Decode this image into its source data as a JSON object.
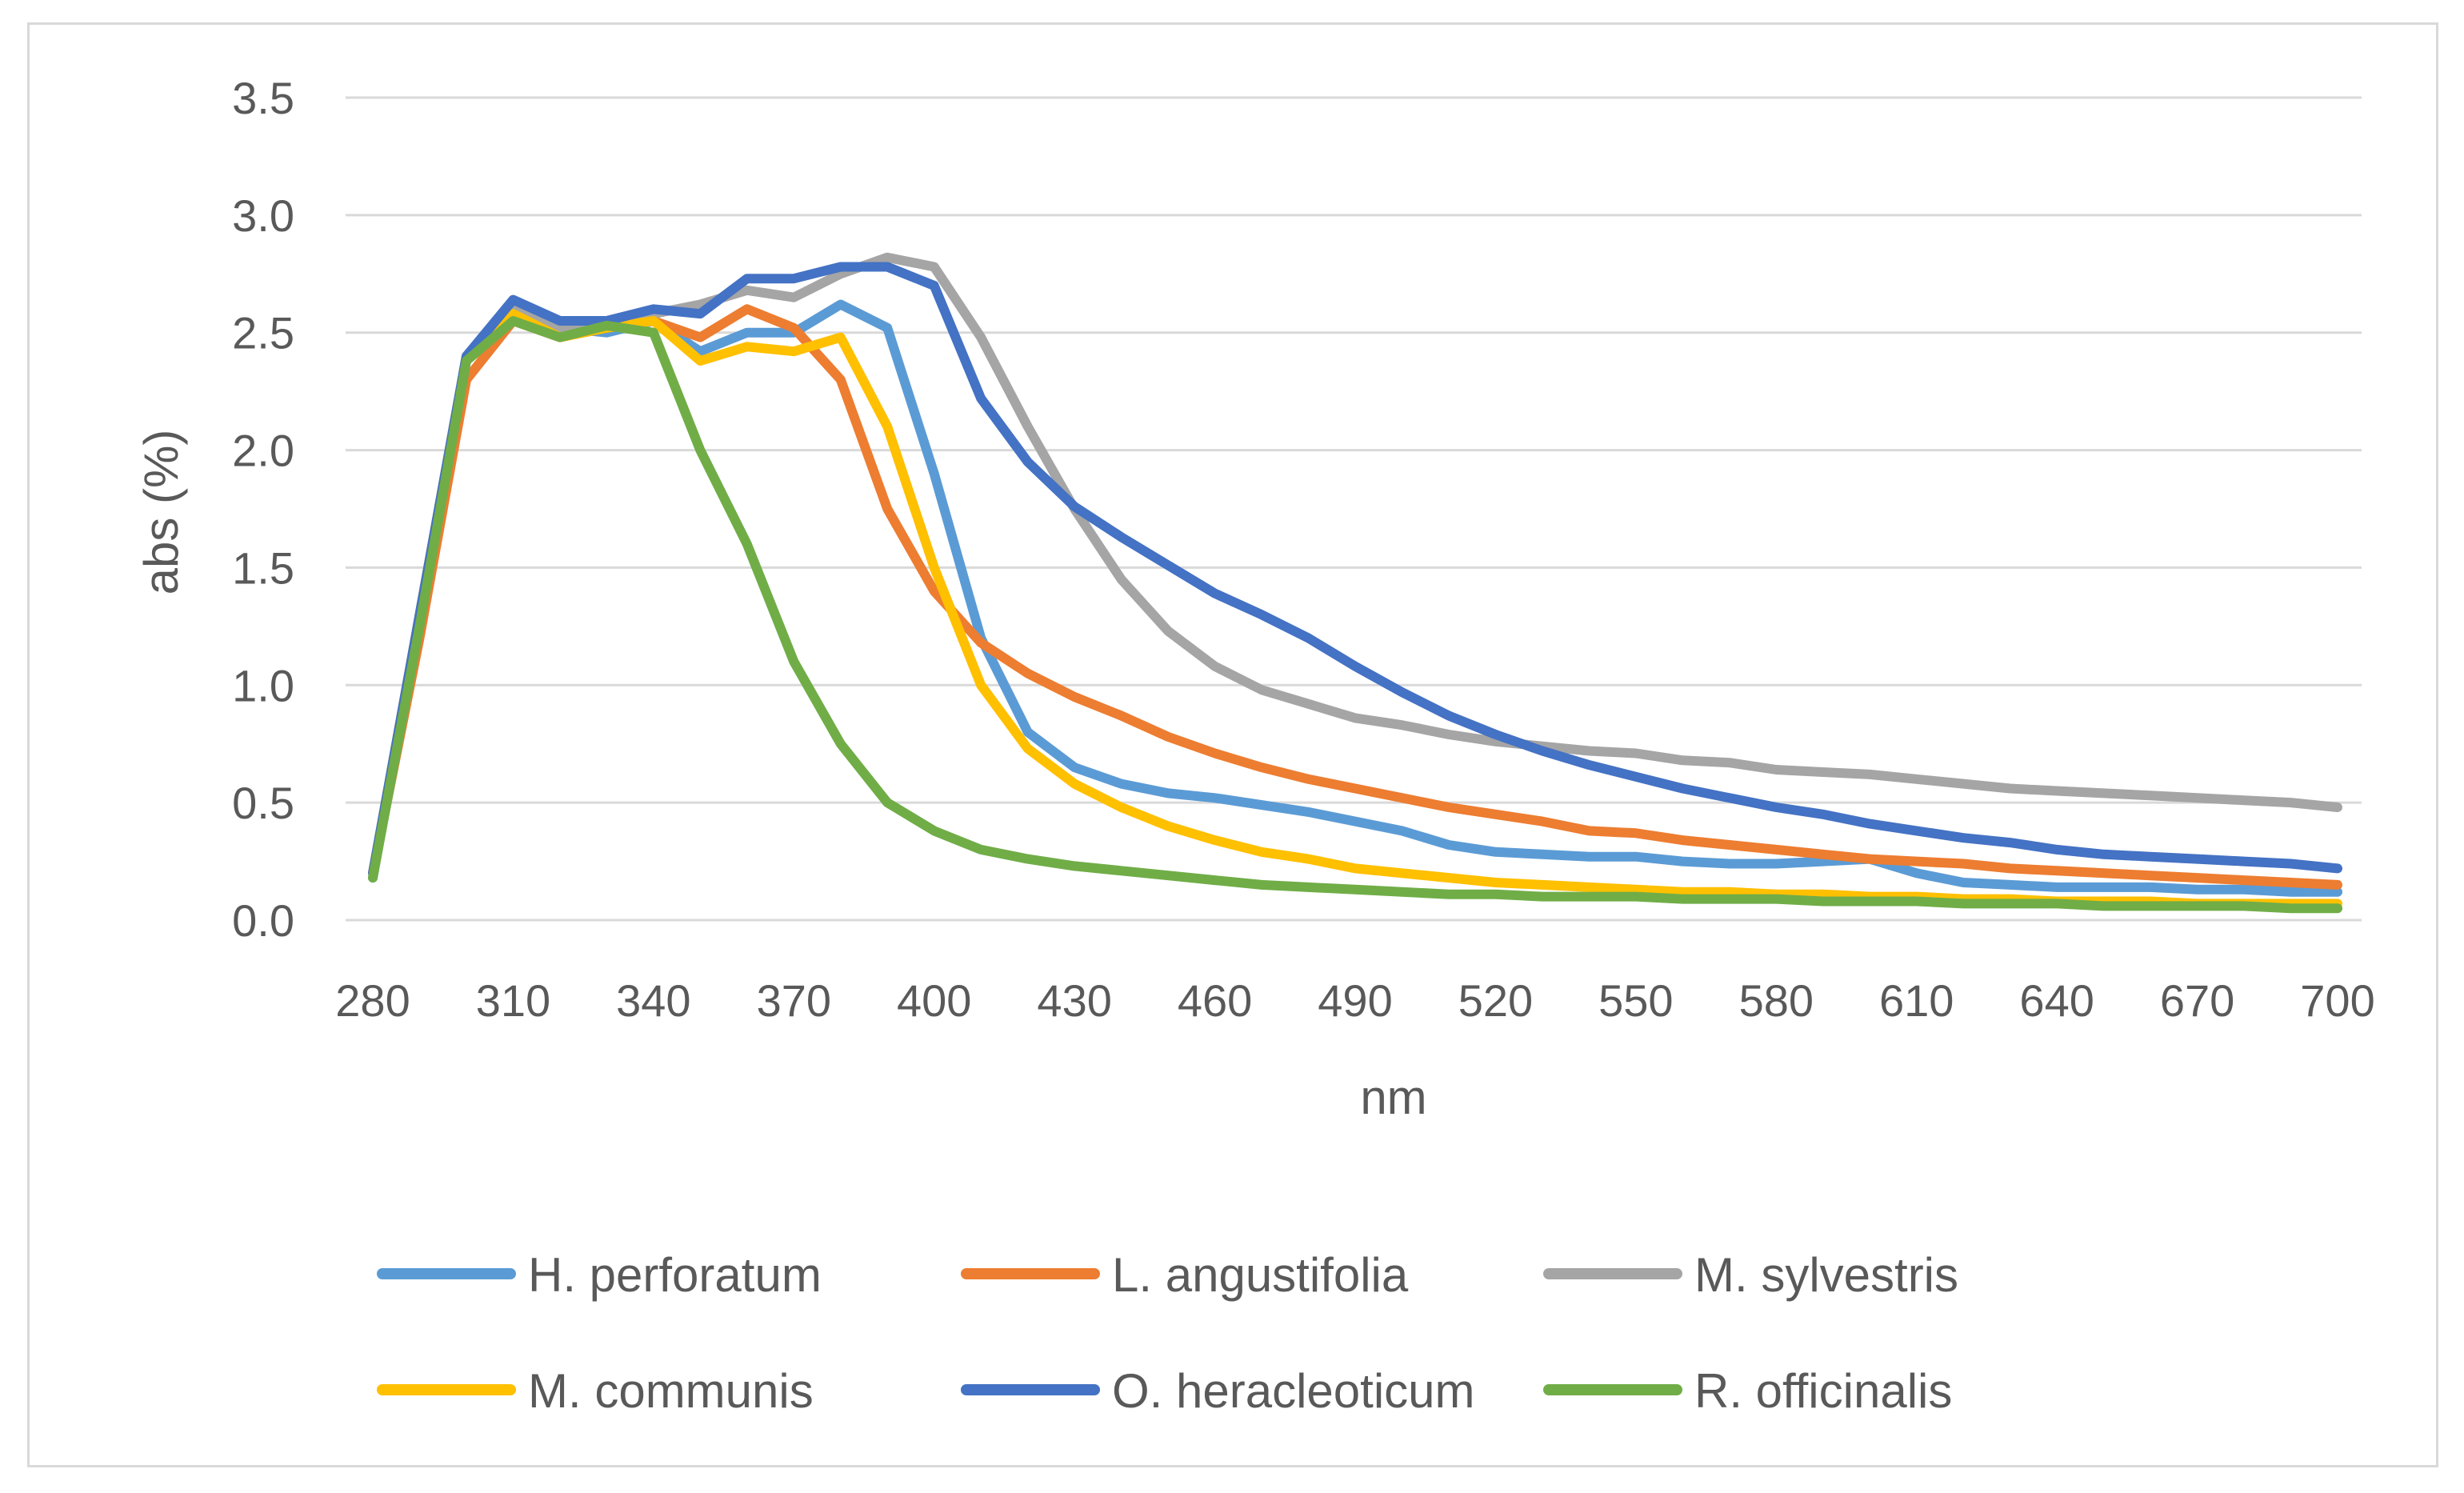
{
  "chart_data": {
    "type": "line",
    "title": "",
    "xlabel": "nm",
    "ylabel": "abs (%)",
    "xlim": [
      280,
      700
    ],
    "ylim": [
      0,
      3.5
    ],
    "x_ticks": [
      "280",
      "310",
      "340",
      "370",
      "400",
      "430",
      "460",
      "490",
      "520",
      "550",
      "580",
      "610",
      "640",
      "670",
      "700"
    ],
    "y_ticks": [
      "0.0",
      "0.5",
      "1.0",
      "1.5",
      "2.0",
      "2.5",
      "3.0",
      "3.5"
    ],
    "grid": "horizontal",
    "legend_position": "bottom",
    "x": [
      280,
      290,
      300,
      310,
      320,
      330,
      340,
      350,
      360,
      370,
      380,
      390,
      400,
      410,
      420,
      430,
      440,
      450,
      460,
      470,
      480,
      490,
      500,
      510,
      520,
      530,
      540,
      550,
      560,
      570,
      580,
      590,
      600,
      610,
      620,
      630,
      640,
      650,
      660,
      670,
      680,
      690,
      700
    ],
    "series": [
      {
        "name": "H. perforatum",
        "color": "#5b9bd5",
        "values": [
          0.18,
          1.3,
          2.4,
          2.6,
          2.52,
          2.5,
          2.55,
          2.42,
          2.5,
          2.5,
          2.62,
          2.52,
          1.9,
          1.2,
          0.8,
          0.65,
          0.58,
          0.54,
          0.52,
          0.49,
          0.46,
          0.42,
          0.38,
          0.32,
          0.29,
          0.28,
          0.27,
          0.27,
          0.25,
          0.24,
          0.24,
          0.25,
          0.26,
          0.2,
          0.16,
          0.15,
          0.14,
          0.14,
          0.14,
          0.13,
          0.13,
          0.12,
          0.12
        ]
      },
      {
        "name": "L. angustifolia",
        "color": "#ed7d31",
        "values": [
          0.2,
          1.2,
          2.3,
          2.55,
          2.48,
          2.52,
          2.55,
          2.48,
          2.6,
          2.52,
          2.3,
          1.75,
          1.4,
          1.18,
          1.05,
          0.95,
          0.87,
          0.78,
          0.71,
          0.65,
          0.6,
          0.56,
          0.52,
          0.48,
          0.45,
          0.42,
          0.38,
          0.37,
          0.34,
          0.32,
          0.3,
          0.28,
          0.26,
          0.25,
          0.24,
          0.22,
          0.21,
          0.2,
          0.19,
          0.18,
          0.17,
          0.16,
          0.15
        ]
      },
      {
        "name": "M. sylvestris",
        "color": "#a5a5a5",
        "values": [
          0.2,
          1.3,
          2.4,
          2.62,
          2.52,
          2.55,
          2.58,
          2.62,
          2.68,
          2.65,
          2.75,
          2.82,
          2.78,
          2.48,
          2.1,
          1.75,
          1.45,
          1.23,
          1.08,
          0.98,
          0.92,
          0.86,
          0.83,
          0.79,
          0.76,
          0.74,
          0.72,
          0.71,
          0.68,
          0.67,
          0.64,
          0.63,
          0.62,
          0.6,
          0.58,
          0.56,
          0.55,
          0.54,
          0.53,
          0.52,
          0.51,
          0.5,
          0.48
        ]
      },
      {
        "name": "M. communis",
        "color": "#ffc000",
        "values": [
          0.2,
          1.3,
          2.4,
          2.58,
          2.48,
          2.52,
          2.55,
          2.38,
          2.44,
          2.42,
          2.48,
          2.1,
          1.5,
          1.0,
          0.73,
          0.58,
          0.48,
          0.4,
          0.34,
          0.29,
          0.26,
          0.22,
          0.2,
          0.18,
          0.16,
          0.15,
          0.14,
          0.13,
          0.12,
          0.12,
          0.11,
          0.11,
          0.1,
          0.1,
          0.09,
          0.09,
          0.08,
          0.08,
          0.08,
          0.07,
          0.07,
          0.07,
          0.07
        ]
      },
      {
        "name": "O. heracleoticum",
        "color": "#4472c4",
        "values": [
          0.2,
          1.3,
          2.4,
          2.64,
          2.55,
          2.55,
          2.6,
          2.58,
          2.73,
          2.73,
          2.78,
          2.78,
          2.7,
          2.22,
          1.95,
          1.76,
          1.63,
          1.51,
          1.39,
          1.3,
          1.2,
          1.08,
          0.97,
          0.87,
          0.79,
          0.72,
          0.66,
          0.61,
          0.56,
          0.52,
          0.48,
          0.45,
          0.41,
          0.38,
          0.35,
          0.33,
          0.3,
          0.28,
          0.27,
          0.26,
          0.25,
          0.24,
          0.22
        ]
      },
      {
        "name": "R. officinalis",
        "color": "#70ad47",
        "values": [
          0.18,
          1.25,
          2.38,
          2.55,
          2.48,
          2.53,
          2.5,
          2.0,
          1.6,
          1.1,
          0.75,
          0.5,
          0.38,
          0.3,
          0.26,
          0.23,
          0.21,
          0.19,
          0.17,
          0.15,
          0.14,
          0.13,
          0.12,
          0.11,
          0.11,
          0.1,
          0.1,
          0.1,
          0.09,
          0.09,
          0.09,
          0.08,
          0.08,
          0.08,
          0.07,
          0.07,
          0.07,
          0.06,
          0.06,
          0.06,
          0.06,
          0.05,
          0.05
        ]
      }
    ]
  }
}
